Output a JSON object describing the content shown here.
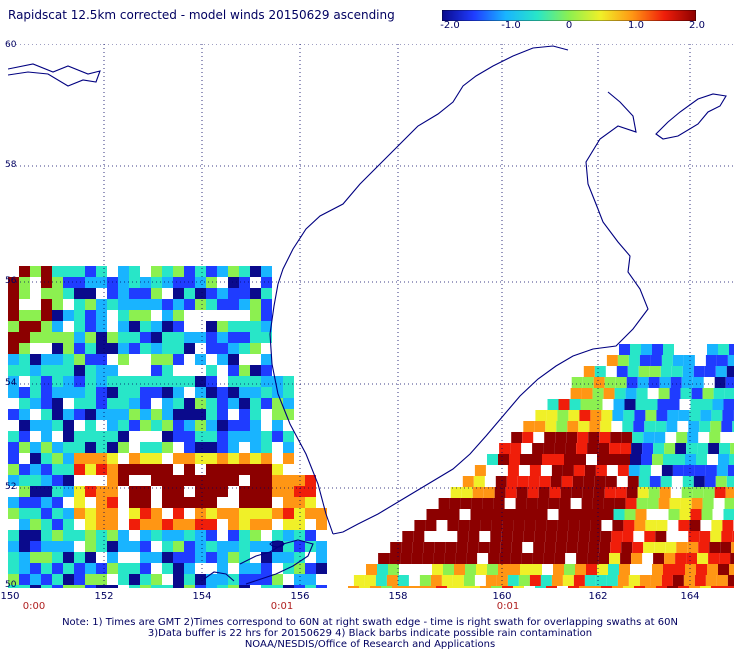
{
  "title": "Rapidscat 12.5km corrected - model winds 20150629 ascending",
  "colorbar": {
    "ticks": [
      "-2.0",
      "-1.0",
      "0",
      "1.0",
      "2.0"
    ],
    "colors": [
      "#0a0a8c",
      "#1f3cff",
      "#19b4ff",
      "#28e6c8",
      "#8cf050",
      "#f0f028",
      "#ff9614",
      "#f01e0a",
      "#8c0000"
    ]
  },
  "map": {
    "lat_labels": [
      "60",
      "58",
      "56",
      "54",
      "52",
      "50"
    ],
    "lon_labels": [
      "150",
      "152",
      "154",
      "156",
      "158",
      "160",
      "162",
      "164"
    ],
    "time_labels": [
      "0:00",
      "0:01",
      "0:01"
    ],
    "grid_color": "#000060",
    "coast_color": "#000080"
  },
  "notes": [
    "Note: 1) Times are GMT 2)Times correspond to 60N at right swath edge - time is right swath for overlapping swaths at 60N",
    "3)Data buffer is 22 hrs for 20150629 4) Black barbs indicate possible rain contamination",
    "NOAA/NESDIS/Office of Research and Applications"
  ]
}
